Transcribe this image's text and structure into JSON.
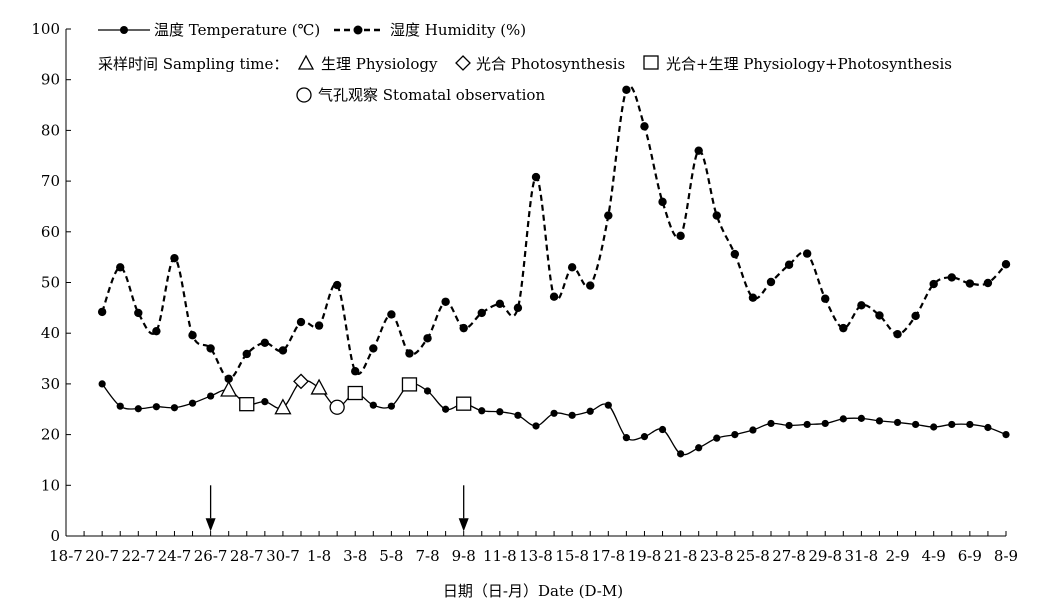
{
  "chart_data": {
    "type": "line",
    "xlabel": "日期（日-月）Date (D-M)",
    "ylim": [
      0,
      100
    ],
    "y_ticks": [
      0,
      10,
      20,
      30,
      40,
      50,
      60,
      70,
      80,
      90,
      100
    ],
    "x_tick_labels": [
      "18-7",
      "20-7",
      "22-7",
      "24-7",
      "26-7",
      "28-7",
      "30-7",
      "1-8",
      "3-8",
      "5-8",
      "7-8",
      "9-8",
      "11-8",
      "13-8",
      "15-8",
      "17-8",
      "19-8",
      "21-8",
      "23-8",
      "25-8",
      "27-8",
      "29-8",
      "31-8",
      "2-9",
      "4-9",
      "6-9",
      "8-9"
    ],
    "dates": [
      "20-7",
      "21-7",
      "22-7",
      "23-7",
      "24-7",
      "25-7",
      "26-7",
      "27-7",
      "28-7",
      "29-7",
      "30-7",
      "31-7",
      "1-8",
      "2-8",
      "3-8",
      "4-8",
      "5-8",
      "6-8",
      "7-8",
      "8-8",
      "9-8",
      "10-8",
      "11-8",
      "12-8",
      "13-8",
      "14-8",
      "15-8",
      "16-8",
      "17-8",
      "18-8",
      "19-8",
      "20-8",
      "21-8",
      "22-8",
      "23-8",
      "24-8",
      "25-8",
      "26-8",
      "27-8",
      "28-8",
      "29-8",
      "30-8",
      "31-8",
      "1-9",
      "2-9",
      "3-9",
      "4-9",
      "5-9",
      "6-9",
      "7-9",
      "8-9"
    ],
    "series": [
      {
        "name": "温度 Temperature (℃)",
        "style": "solid",
        "values": [
          30,
          25.6,
          25.1,
          25.5,
          25.3,
          26.2,
          27.6,
          28.8,
          26.0,
          26.5,
          25.3,
          30.5,
          29.2,
          25.4,
          28.2,
          25.8,
          25.6,
          29.9,
          28.6,
          25.0,
          26.1,
          24.7,
          24.5,
          23.8,
          21.7,
          24.2,
          23.8,
          24.6,
          25.8,
          19.4,
          19.6,
          21.0,
          16.2,
          17.4,
          19.3,
          20.0,
          20.9,
          22.2,
          21.8,
          22.0,
          22.2,
          23.1,
          23.2,
          22.7,
          22.4,
          22.0,
          21.5,
          22.0,
          22.0,
          21.4,
          20.0
        ]
      },
      {
        "name": "湿度 Humidity (%)",
        "style": "dashed",
        "values": [
          44.2,
          53.0,
          44.0,
          40.4,
          54.8,
          39.6,
          37.0,
          31.0,
          35.9,
          38.1,
          36.6,
          42.2,
          41.5,
          49.5,
          32.5,
          37.0,
          43.7,
          36.0,
          39.0,
          46.2,
          41.0,
          44.0,
          45.8,
          45.0,
          70.8,
          47.2,
          53.0,
          49.4,
          63.2,
          88.0,
          80.8,
          65.9,
          59.2,
          76.0,
          63.2,
          55.6,
          47.0,
          50.1,
          53.5,
          55.7,
          46.8,
          41.0,
          45.5,
          43.5,
          39.8,
          43.4,
          49.7,
          51.0,
          49.8,
          49.9,
          53.6
        ]
      }
    ],
    "sampling_legend": {
      "title": "采样时间 Sampling time：",
      "physiology": "生理 Physiology",
      "photosynthesis": "光合 Photosynthesis",
      "both": "光合+生理 Physiology+Photosynthesis",
      "stomatal": "气孔观察 Stomatal observation"
    },
    "sampling_markers": [
      {
        "kind": "physiology",
        "date": "27-7",
        "value": 28.8
      },
      {
        "kind": "physiology",
        "date": "30-7",
        "value": 25.3
      },
      {
        "kind": "physiology",
        "date": "1-8",
        "value": 29.2
      },
      {
        "kind": "photosynthesis",
        "date": "31-7",
        "value": 30.5
      },
      {
        "kind": "both",
        "date": "28-7",
        "value": 26.0
      },
      {
        "kind": "both",
        "date": "3-8",
        "value": 28.2
      },
      {
        "kind": "both",
        "date": "6-8",
        "value": 29.9
      },
      {
        "kind": "both",
        "date": "9-8",
        "value": 26.1
      },
      {
        "kind": "stomatal",
        "date": "2-8",
        "value": 25.4
      }
    ],
    "arrows": [
      {
        "date": "26-7"
      },
      {
        "date": "9-8"
      }
    ]
  }
}
